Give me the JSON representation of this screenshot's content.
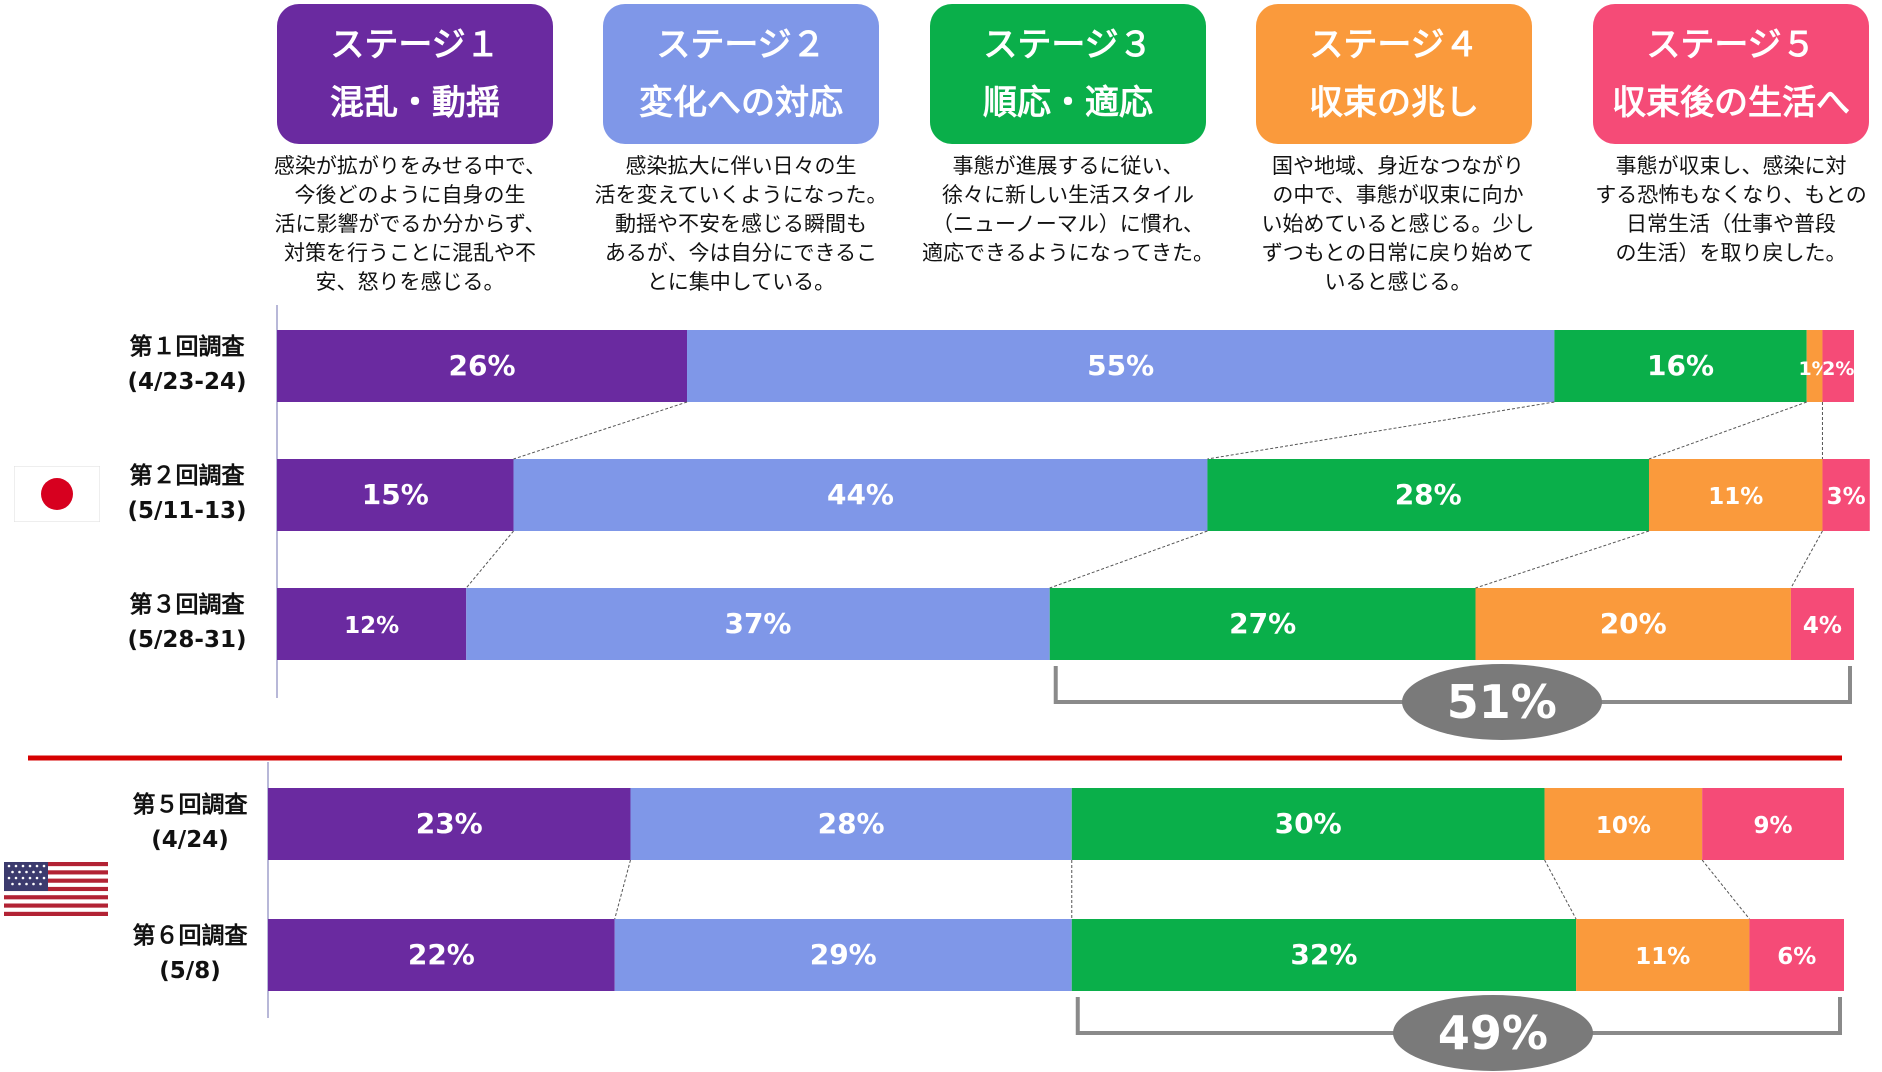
{
  "stages": [
    {
      "title": "ステージ１",
      "name": "混乱・動揺",
      "color": "#6a2aa0",
      "desc": "感染が拡がりをみせる中で、\n今後どのように自身の生\n活に影響がでるか分からず、\n対策を行うことに混乱や不\n安、怒りを感じる。"
    },
    {
      "title": "ステージ２",
      "name": "変化への対応",
      "color": "#7f97e8",
      "desc": "感染拡大に伴い日々の生\n活を変えていくようになった。\n動揺や不安を感じる瞬間も\nあるが、今は自分にできるこ\nとに集中している。"
    },
    {
      "title": "ステージ３",
      "name": "順応・適応",
      "color": "#0aaf4a",
      "desc": "事態が進展するに従い、\n徐々に新しい生活スタイル\n（ニューノーマル）に慣れ、\n適応できるようになってきた。"
    },
    {
      "title": "ステージ４",
      "name": "収束の兆し",
      "color": "#fa9a3c",
      "desc": "国や地域、身近なつながり\nの中で、事態が収束に向か\nい始めていると感じる。少し\nずつもとの日常に戻り始めて\nいると感じる。"
    },
    {
      "title": "ステージ５",
      "name": "収束後の生活へ",
      "color": "#f54b77",
      "desc": "事態が収束し、感染に対\nする恐怖もなくなり、もとの\n日常生活（仕事や普段\nの生活）を取り戻した。"
    }
  ],
  "chart_data": {
    "type": "bar",
    "orientation": "horizontal",
    "stacked": true,
    "xlim": [
      0,
      100
    ],
    "groups": [
      {
        "country": "japan-flag",
        "rows": [
          {
            "label": "第１回調査",
            "period": "(4/23-24)",
            "values": [
              26,
              55,
              16,
              1,
              2
            ]
          },
          {
            "label": "第２回調査",
            "period": "(5/11-13)",
            "values": [
              15,
              44,
              28,
              11,
              3
            ]
          },
          {
            "label": "第３回調査",
            "period": "(5/28-31)",
            "values": [
              12,
              37,
              27,
              20,
              4
            ]
          }
        ]
      },
      {
        "country": "usa-flag",
        "rows": [
          {
            "label": "第５回調査",
            "period": "(4/24)",
            "values": [
              23,
              28,
              30,
              10,
              9
            ]
          },
          {
            "label": "第６回調査",
            "period": "(5/8)",
            "values": [
              22,
              29,
              32,
              11,
              6
            ]
          }
        ]
      }
    ],
    "callouts": [
      {
        "text": "51%",
        "group": 0,
        "row": 2,
        "from_segment": 2
      },
      {
        "text": "49%",
        "group": 1,
        "row": 1,
        "from_segment": 2
      }
    ],
    "divider_color": "#d60000"
  }
}
